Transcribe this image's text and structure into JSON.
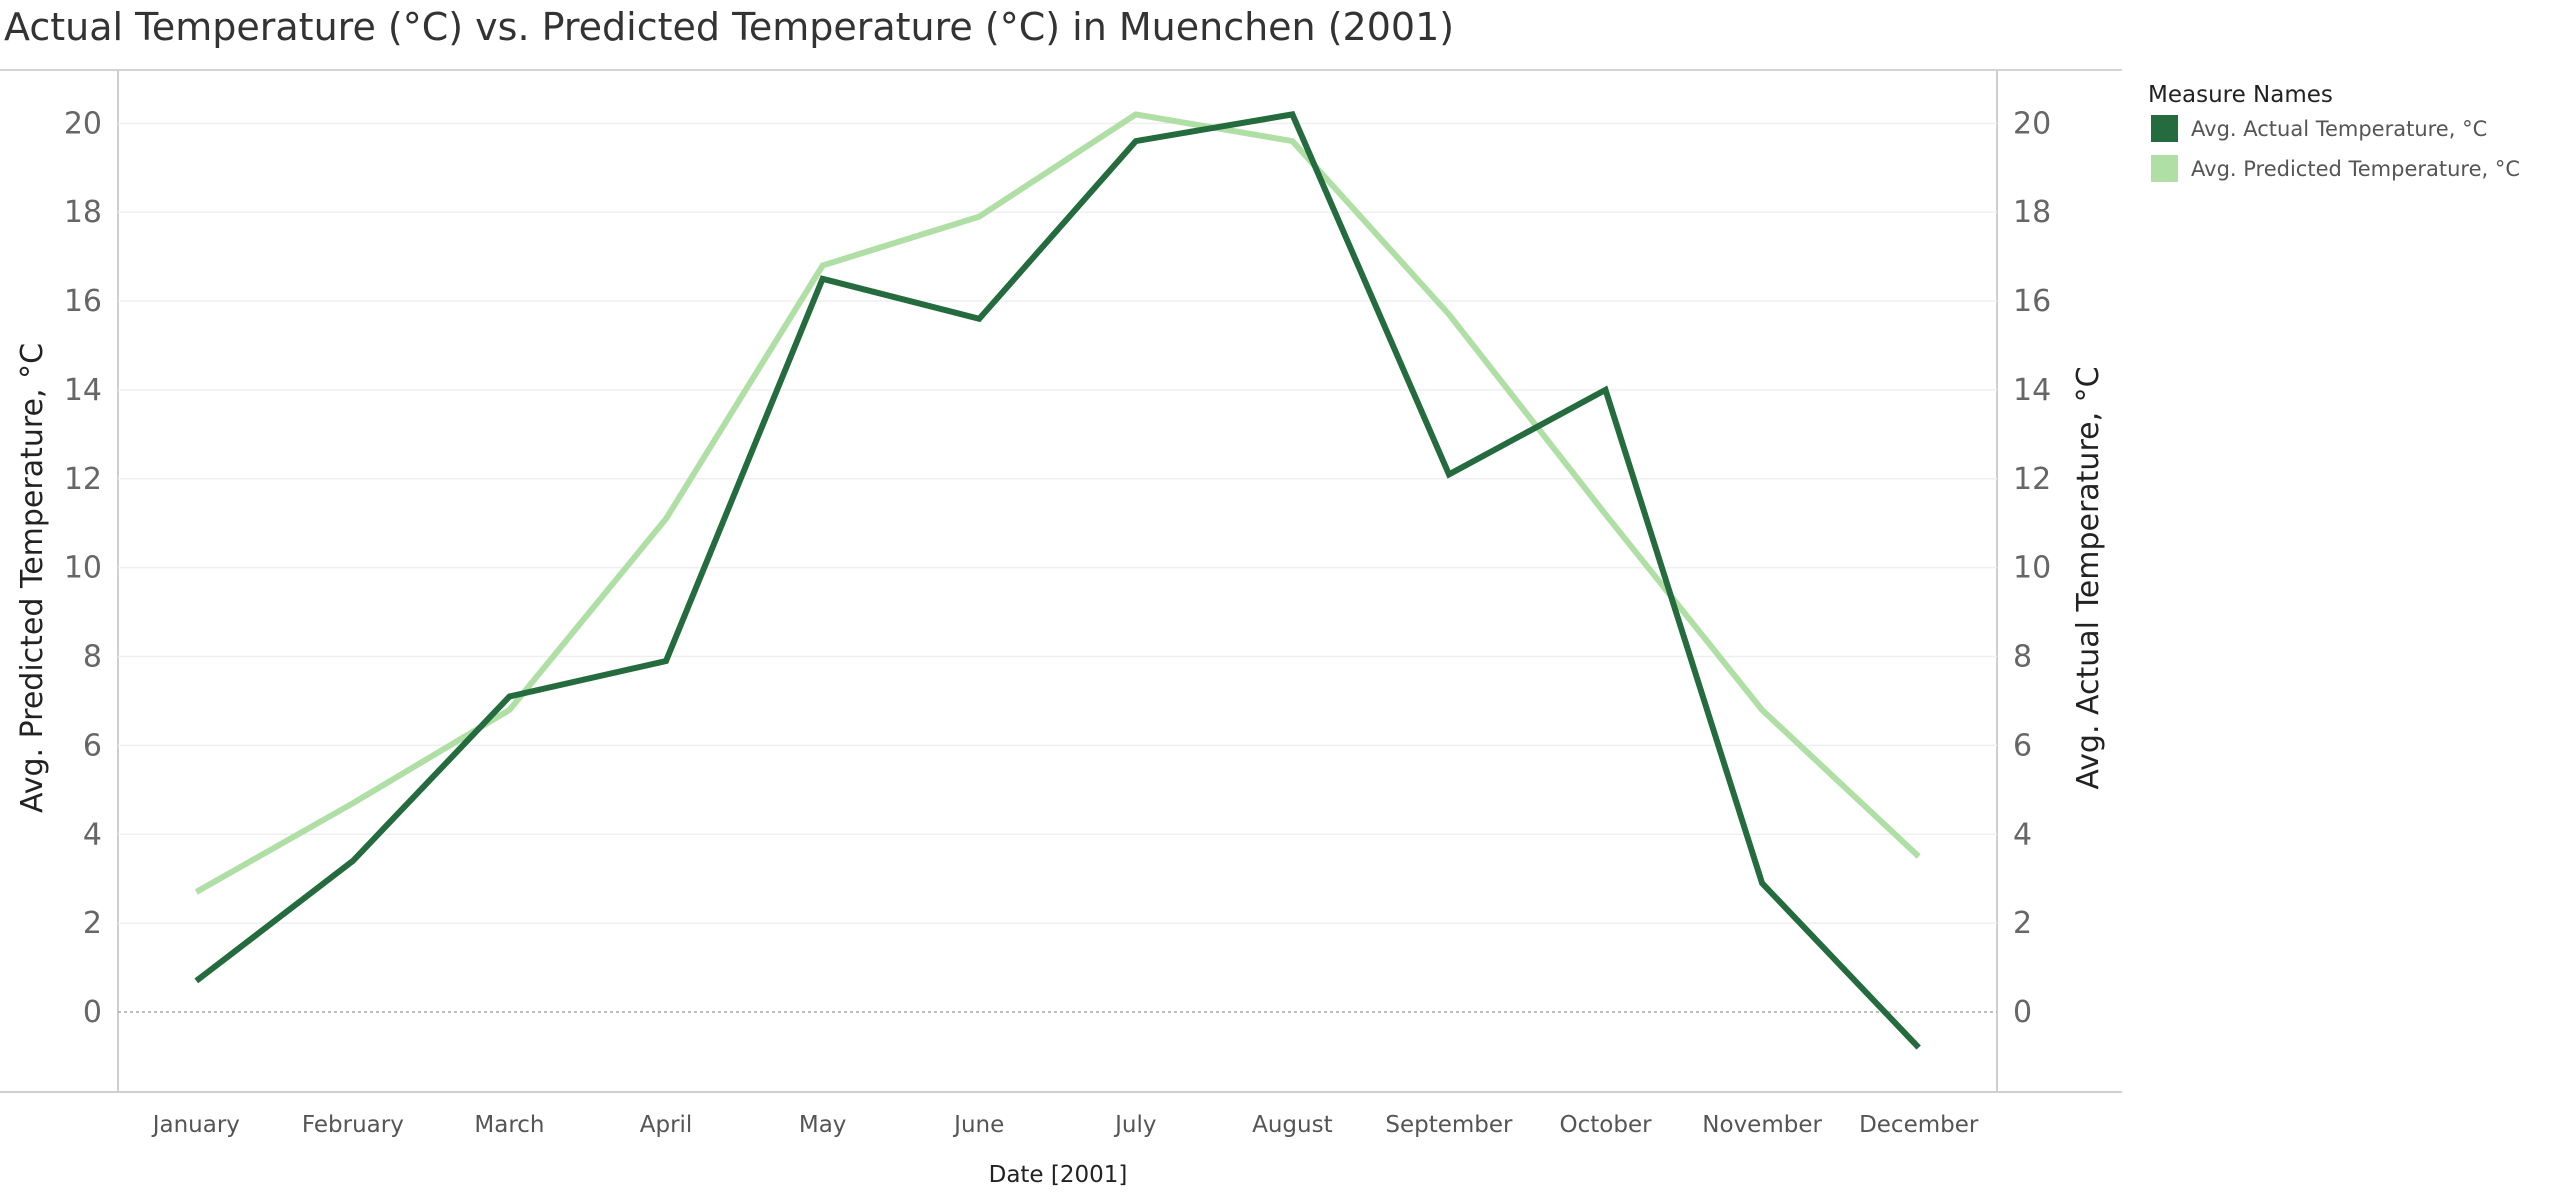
{
  "chart_data": {
    "type": "line",
    "title": "Actual Temperature (°C) vs. Predicted Temperature (°C) in Muenchen (2001)",
    "xlabel": "Date [2001]",
    "ylabel_left": "Avg. Predicted Temperature, °C",
    "ylabel_right": "Avg. Actual Temperature, °C",
    "categories": [
      "January",
      "February",
      "March",
      "April",
      "May",
      "June",
      "July",
      "August",
      "September",
      "October",
      "November",
      "December"
    ],
    "ylim": [
      -1.8,
      21.2
    ],
    "yticks": [
      "0",
      "2",
      "4",
      "6",
      "8",
      "10",
      "12",
      "14",
      "16",
      "18",
      "20"
    ],
    "grid": true,
    "zero_line": true,
    "legend_position": "top-right",
    "legend_title": "Measure Names",
    "series": [
      {
        "name": "Avg.  Actual Temperature,  °C",
        "axis": "right",
        "color": "#246b3e",
        "values": [
          0.7,
          3.4,
          7.1,
          7.9,
          16.5,
          15.6,
          19.6,
          20.2,
          12.1,
          14.0,
          2.9,
          -0.8
        ]
      },
      {
        "name": "Avg. Predicted Temperature,  °C",
        "axis": "left",
        "color": "#b0dfa6",
        "values": [
          2.7,
          4.7,
          6.8,
          11.1,
          16.8,
          17.9,
          20.2,
          19.6,
          15.7,
          11.2,
          6.8,
          3.5
        ]
      }
    ]
  }
}
